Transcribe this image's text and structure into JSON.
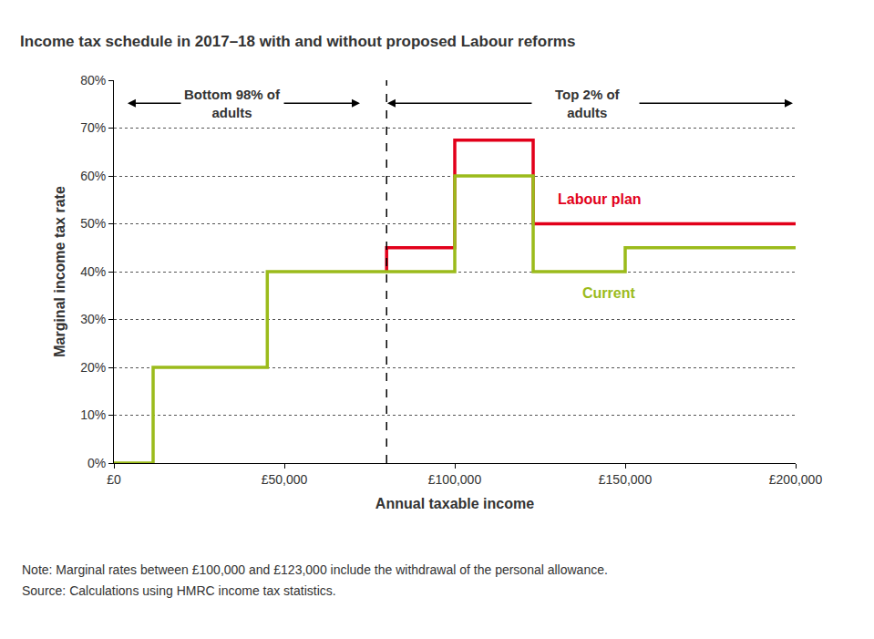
{
  "chart_data": {
    "type": "line",
    "line_style": "step",
    "title": "Income tax schedule in 2017–18 with and without proposed Labour reforms",
    "x_label": "Annual taxable income",
    "y_label": "Marginal income tax rate",
    "xlim": [
      0,
      200000
    ],
    "xticks": [
      {
        "value": 0,
        "label": "£0"
      },
      {
        "value": 50000,
        "label": "£50,000"
      },
      {
        "value": 100000,
        "label": "£100,000"
      },
      {
        "value": 150000,
        "label": "£150,000"
      },
      {
        "value": 200000,
        "label": "£200,000"
      }
    ],
    "ylim": [
      0,
      80
    ],
    "yticks": [
      {
        "value": 0,
        "label": "0%"
      },
      {
        "value": 10,
        "label": "10%"
      },
      {
        "value": 20,
        "label": "20%"
      },
      {
        "value": 30,
        "label": "30%"
      },
      {
        "value": 40,
        "label": "40%"
      },
      {
        "value": 50,
        "label": "50%"
      },
      {
        "value": 60,
        "label": "60%"
      },
      {
        "value": 70,
        "label": "70%"
      },
      {
        "value": 80,
        "label": "80%"
      }
    ],
    "grid": true,
    "series": [
      {
        "name": "Labour plan",
        "color": "#e2001a",
        "x": [
          80000,
          80000,
          100000,
          123000,
          200000
        ],
        "values": [
          40,
          45,
          67.5,
          50,
          50
        ]
      },
      {
        "name": "Current",
        "color": "#9bbb1b",
        "x": [
          0,
          11500,
          45000,
          100000,
          123000,
          150000,
          200000
        ],
        "values": [
          0,
          20,
          40,
          60,
          40,
          45,
          45
        ]
      }
    ],
    "divider": 80000,
    "annotations": [
      {
        "text": [
          "Bottom 98% of",
          "adults"
        ]
      },
      {
        "text": [
          "Top 2% of",
          "adults"
        ]
      }
    ],
    "notes": [
      "Note: Marginal rates between £100,000 and £123,000 include the withdrawal of the personal allowance.",
      "Source: Calculations using HMRC income tax statistics."
    ]
  }
}
